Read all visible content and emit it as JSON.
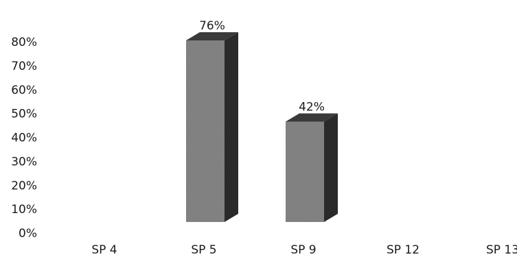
{
  "chart_data": {
    "type": "bar",
    "categories": [
      "SP 4",
      "SP 5",
      "SP 9",
      "SP 12",
      "SP 13"
    ],
    "values": [
      null,
      0.76,
      0.42,
      null,
      null
    ],
    "value_labels": [
      "",
      "76%",
      "42%",
      "",
      ""
    ],
    "y_ticks": [
      "0%",
      "10%",
      "20%",
      "30%",
      "40%",
      "50%",
      "60%",
      "70%",
      "80%"
    ],
    "ylim": [
      0,
      0.8
    ],
    "grid": false,
    "legend": "none",
    "style": "3d-column",
    "colors": {
      "bar_front": "#8a8a8a",
      "bar_side": "#2a2a2a",
      "bar_top": "#3a3a3a",
      "text": "#1a1a1a"
    }
  }
}
